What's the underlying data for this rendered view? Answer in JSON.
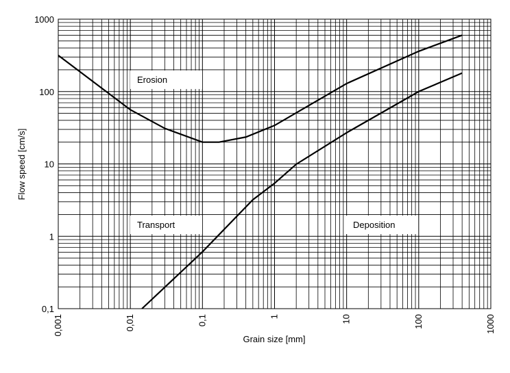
{
  "chart_data": {
    "type": "line",
    "xlabel": "Grain size [mm]",
    "ylabel": "Flow speed [cm/s]",
    "xscale": "log",
    "yscale": "log",
    "grid": true,
    "minor_grid": true,
    "xlim": [
      0.001,
      1000
    ],
    "ylim": [
      0.1,
      1000
    ],
    "xticks": [
      {
        "value": 0.001,
        "label": "0,001"
      },
      {
        "value": 0.01,
        "label": "0,01"
      },
      {
        "value": 0.1,
        "label": "0,1"
      },
      1,
      10,
      100,
      1000
    ],
    "yticks": [
      {
        "value": 0.1,
        "label": "0,1"
      },
      1,
      10,
      100,
      1000
    ],
    "annotations": [
      "Erosion",
      "Transport",
      "Deposition"
    ],
    "series": [
      {
        "color": "#000000",
        "x": [
          0.001,
          0.01,
          0.03,
          0.1,
          0.17,
          0.4,
          1,
          10,
          100,
          400
        ],
        "values": [
          316,
          56,
          31,
          20,
          20,
          23.5,
          34,
          129,
          360,
          600
        ]
      },
      {
        "color": "#000000",
        "x": [
          0.0145,
          0.1,
          0.5,
          1,
          2,
          10,
          100,
          400
        ],
        "values": [
          0.1,
          0.61,
          3.2,
          5.4,
          9.9,
          27,
          100,
          180
        ]
      }
    ]
  }
}
